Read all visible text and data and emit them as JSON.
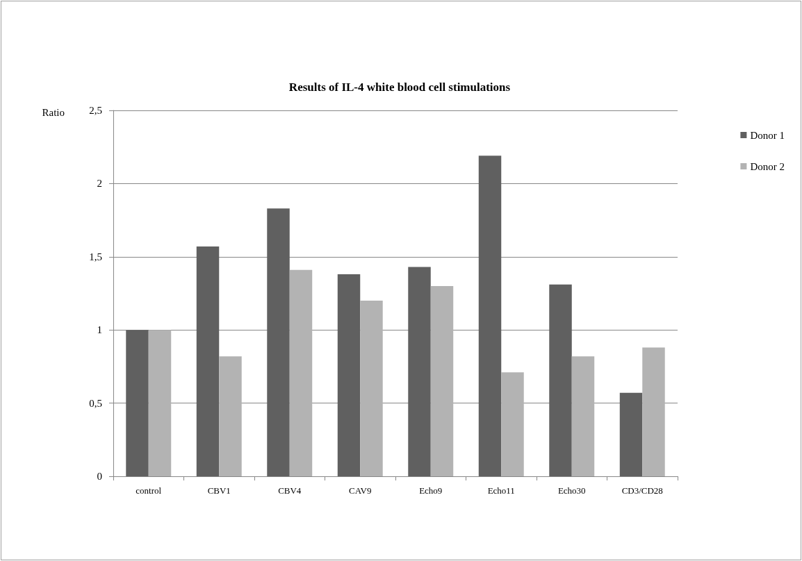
{
  "chart_data": {
    "type": "bar",
    "title": "Results of IL-4 white blood cell stimulations",
    "ylabel": "Ratio",
    "categories": [
      "control",
      "CBV1",
      "CBV4",
      "CAV9",
      "Echo9",
      "Echo11",
      "Echo30",
      "CD3/CD28"
    ],
    "series": [
      {
        "name": "Donor 1",
        "color": "#606060",
        "values": [
          1.0,
          1.57,
          1.83,
          1.38,
          1.43,
          2.19,
          1.31,
          0.57
        ]
      },
      {
        "name": "Donor 2",
        "color": "#b3b3b3",
        "values": [
          1.0,
          0.82,
          1.41,
          1.2,
          1.3,
          0.71,
          0.82,
          0.88
        ]
      }
    ],
    "ylim": [
      0,
      2.5
    ],
    "yticks": [
      0,
      {
        "value": 0.5,
        "label": "0,5"
      },
      1,
      {
        "value": 1.5,
        "label": "1,5"
      },
      2,
      {
        "value": 2.5,
        "label": "2,5"
      }
    ],
    "grid": "y",
    "legend": "right"
  }
}
